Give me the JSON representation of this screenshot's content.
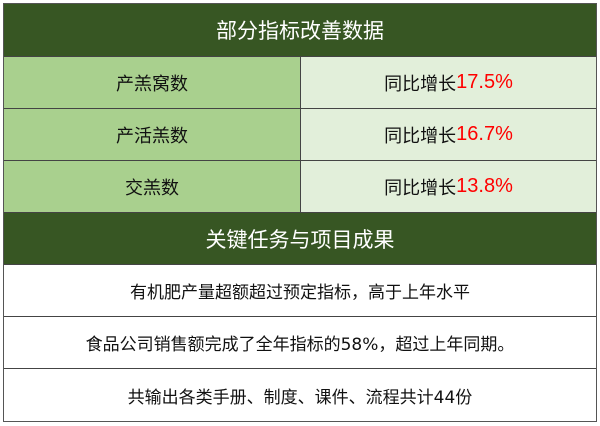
{
  "section1": {
    "title": "部分指标改善数据",
    "rows": [
      {
        "label": "产羔窝数",
        "prefix": "同比增长",
        "value": "17.5%"
      },
      {
        "label": "产活羔数",
        "prefix": "同比增长",
        "value": "16.7%"
      },
      {
        "label": "交羔数",
        "prefix": "同比增长",
        "value": "13.8%"
      }
    ]
  },
  "section2": {
    "title": "关键任务与项目成果",
    "items": [
      "有机肥产量超额超过预定指标，高于上年水平",
      "食品公司销售额完成了全年指标的58%，超过上年同期。",
      "共输出各类手册、制度、课件、流程共计44份"
    ]
  },
  "colors": {
    "header": "#375623",
    "label_cell": "#a9d08e",
    "value_cell": "#e2efda",
    "highlight": "#ff0000"
  }
}
